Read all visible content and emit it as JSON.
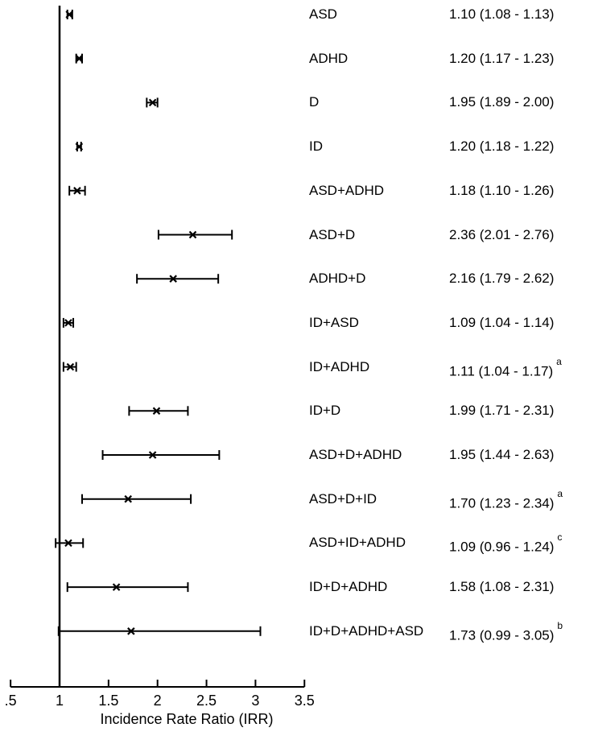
{
  "colors": {
    "foreground": "#000000",
    "background": "#ffffff"
  },
  "chart_data": {
    "type": "scatter",
    "subtype": "forest-plot",
    "title": "",
    "xlabel": "Incidence Rate Ratio (IRR)",
    "ylabel": "",
    "xlim": [
      0.5,
      3.5
    ],
    "x_tick_values": [
      0.5,
      1,
      1.5,
      2,
      2.5,
      3,
      3.5
    ],
    "x_tick_labels": [
      ".5",
      "1",
      "1.5",
      "2",
      "2.5",
      "3",
      "3.5"
    ],
    "reference_line_x": 1,
    "grid": false,
    "legend": false,
    "rows": [
      {
        "label": "ASD",
        "irr": 1.1,
        "ci_low": 1.08,
        "ci_high": 1.13,
        "value_text": "1.10 (1.08 - 1.13)",
        "note": ""
      },
      {
        "label": "ADHD",
        "irr": 1.2,
        "ci_low": 1.17,
        "ci_high": 1.23,
        "value_text": "1.20 (1.17 - 1.23)",
        "note": ""
      },
      {
        "label": "D",
        "irr": 1.95,
        "ci_low": 1.89,
        "ci_high": 2.0,
        "value_text": "1.95 (1.89 - 2.00)",
        "note": ""
      },
      {
        "label": "ID",
        "irr": 1.2,
        "ci_low": 1.18,
        "ci_high": 1.22,
        "value_text": "1.20 (1.18 - 1.22)",
        "note": ""
      },
      {
        "label": "ASD+ADHD",
        "irr": 1.18,
        "ci_low": 1.1,
        "ci_high": 1.26,
        "value_text": "1.18 (1.10 - 1.26)",
        "note": ""
      },
      {
        "label": "ASD+D",
        "irr": 2.36,
        "ci_low": 2.01,
        "ci_high": 2.76,
        "value_text": "2.36 (2.01 - 2.76)",
        "note": ""
      },
      {
        "label": "ADHD+D",
        "irr": 2.16,
        "ci_low": 1.79,
        "ci_high": 2.62,
        "value_text": "2.16 (1.79 - 2.62)",
        "note": ""
      },
      {
        "label": "ID+ASD",
        "irr": 1.09,
        "ci_low": 1.04,
        "ci_high": 1.14,
        "value_text": "1.09 (1.04 - 1.14)",
        "note": ""
      },
      {
        "label": "ID+ADHD",
        "irr": 1.11,
        "ci_low": 1.04,
        "ci_high": 1.17,
        "value_text": "1.11 (1.04 - 1.17)",
        "note": "a"
      },
      {
        "label": "ID+D",
        "irr": 1.99,
        "ci_low": 1.71,
        "ci_high": 2.31,
        "value_text": "1.99 (1.71 - 2.31)",
        "note": ""
      },
      {
        "label": "ASD+D+ADHD",
        "irr": 1.95,
        "ci_low": 1.44,
        "ci_high": 2.63,
        "value_text": "1.95 (1.44 - 2.63)",
        "note": ""
      },
      {
        "label": "ASD+D+ID",
        "irr": 1.7,
        "ci_low": 1.23,
        "ci_high": 2.34,
        "value_text": "1.70 (1.23 - 2.34)",
        "note": "a"
      },
      {
        "label": "ASD+ID+ADHD",
        "irr": 1.09,
        "ci_low": 0.96,
        "ci_high": 1.24,
        "value_text": "1.09 (0.96 - 1.24)",
        "note": "c"
      },
      {
        "label": "ID+D+ADHD",
        "irr": 1.58,
        "ci_low": 1.08,
        "ci_high": 2.31,
        "value_text": "1.58 (1.08 - 2.31)",
        "note": ""
      },
      {
        "label": "ID+D+ADHD+ASD",
        "irr": 1.73,
        "ci_low": 0.99,
        "ci_high": 3.05,
        "value_text": "1.73 (0.99 - 3.05)",
        "note": "b"
      }
    ]
  }
}
